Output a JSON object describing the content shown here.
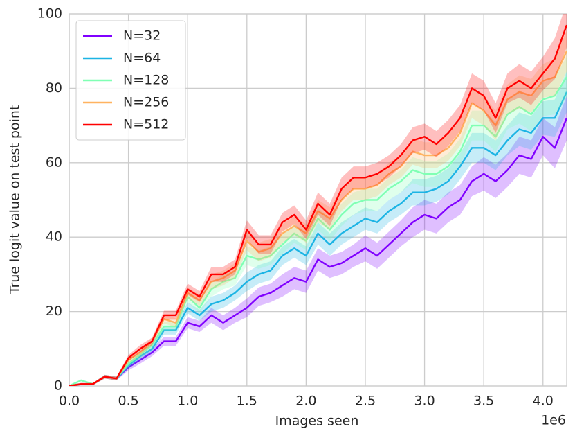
{
  "chart_data": {
    "type": "line",
    "xlabel": "Images seen",
    "ylabel": "True logit value on test point",
    "x_offset_label": "1e6",
    "x": [
      0,
      0.1,
      0.2,
      0.3,
      0.4,
      0.5,
      0.6,
      0.7,
      0.8,
      0.9,
      1.0,
      1.1,
      1.2,
      1.3,
      1.4,
      1.5,
      1.6,
      1.7,
      1.8,
      1.9,
      2.0,
      2.1,
      2.2,
      2.3,
      2.4,
      2.5,
      2.6,
      2.7,
      2.8,
      2.9,
      3.0,
      3.1,
      3.2,
      3.3,
      3.4,
      3.5,
      3.6,
      3.7,
      3.8,
      3.9,
      4.0,
      4.1,
      4.2
    ],
    "xlim": [
      0,
      4.2
    ],
    "xticks": [
      {
        "value": 0,
        "label": "0.0"
      },
      {
        "value": 0.5,
        "label": "0.5"
      },
      {
        "value": 1,
        "label": "1.0"
      },
      {
        "value": 1.5,
        "label": "1.5"
      },
      {
        "value": 2,
        "label": "2.0"
      },
      {
        "value": 2.5,
        "label": "2.5"
      },
      {
        "value": 3,
        "label": "3.0"
      },
      {
        "value": 3.5,
        "label": "3.5"
      },
      {
        "value": 4,
        "label": "4.0"
      }
    ],
    "ylim": [
      0,
      100
    ],
    "yticks": [
      0,
      20,
      40,
      60,
      80,
      100
    ],
    "grid": true,
    "legend": "upper left",
    "series": [
      {
        "name": "N=32",
        "color": "#8000ff",
        "values": [
          0,
          0.5,
          0.5,
          2.5,
          2,
          5,
          7,
          9,
          12,
          12,
          17,
          16,
          19,
          17,
          19,
          21,
          24,
          25,
          27,
          29,
          28,
          34,
          32,
          33,
          35,
          37,
          35,
          38,
          41,
          44,
          46,
          45,
          48,
          50,
          55,
          57,
          55,
          58,
          62,
          61,
          67,
          64,
          72
        ],
        "error": [
          0.3,
          0.3,
          0.3,
          0.5,
          0.5,
          0.8,
          1,
          1,
          1.2,
          1.2,
          1.5,
          1.5,
          2,
          2,
          2,
          2.5,
          2.5,
          2.5,
          3,
          3,
          3,
          3,
          3,
          3,
          3,
          3.5,
          3.5,
          3.5,
          3.5,
          4,
          4,
          4,
          4,
          4,
          4,
          4.5,
          4.5,
          4.5,
          5,
          5,
          5,
          5.5,
          6
        ]
      },
      {
        "name": "N=64",
        "color": "#1cb4e4",
        "values": [
          0,
          0.5,
          0.5,
          2.5,
          2,
          5.5,
          8,
          10,
          15,
          15,
          21,
          19,
          22,
          23,
          25,
          28,
          30,
          31,
          35,
          37,
          35,
          41,
          38,
          41,
          43,
          45,
          44,
          47,
          49,
          52,
          52,
          53,
          55,
          59,
          64,
          64,
          62,
          66,
          69,
          68,
          72,
          72,
          79
        ],
        "error": [
          0.3,
          0.3,
          0.3,
          0.5,
          0.5,
          0.8,
          1,
          1,
          1.2,
          1.2,
          1.5,
          1.5,
          2,
          2,
          2,
          2.5,
          2.5,
          2.5,
          2.5,
          2.5,
          2.5,
          3,
          3,
          3,
          3,
          3,
          3,
          3,
          3,
          3.5,
          3.5,
          3.5,
          3.5,
          3.5,
          4,
          4,
          4,
          4,
          4.5,
          4.5,
          4.5,
          5,
          5.5
        ]
      },
      {
        "name": "N=128",
        "color": "#80ffb4",
        "values": [
          0,
          1.5,
          0.5,
          2.5,
          2,
          6,
          8.5,
          11,
          16,
          16,
          24,
          21,
          26,
          28,
          29,
          35,
          34,
          35,
          38,
          41,
          39,
          45,
          42,
          46,
          49,
          50,
          50,
          53,
          55,
          58,
          57,
          57,
          59,
          63,
          70,
          70,
          67,
          73,
          75,
          73,
          77,
          78,
          83
        ],
        "error": [
          0.3,
          0.3,
          0.3,
          0.5,
          0.5,
          0.8,
          1,
          1,
          1.2,
          1.2,
          1.5,
          1.5,
          2,
          2,
          2,
          2.5,
          2.5,
          2.5,
          2.5,
          2.5,
          2.5,
          3,
          3,
          3,
          3,
          3,
          3,
          3,
          3,
          3.5,
          3.5,
          3.5,
          3.5,
          3.5,
          4,
          4,
          4,
          4,
          4.5,
          4.5,
          4.5,
          5,
          5.5
        ]
      },
      {
        "name": "N=256",
        "color": "#ffb360",
        "values": [
          0,
          0.5,
          0.5,
          2.5,
          2,
          7,
          9,
          12,
          18,
          17,
          25,
          23,
          28,
          29,
          31,
          39,
          36,
          37,
          41,
          43,
          41,
          47,
          45,
          50,
          53,
          53,
          54,
          57,
          59,
          63,
          62,
          62,
          64,
          68,
          76,
          74,
          70,
          77,
          79,
          78,
          82,
          83,
          90
        ],
        "error": [
          0.3,
          0.3,
          0.3,
          0.5,
          0.5,
          0.8,
          1,
          1,
          1.2,
          1.2,
          1.5,
          1.5,
          2,
          2,
          2,
          2.5,
          2.5,
          2.5,
          2.5,
          2.5,
          2.5,
          3,
          3,
          3,
          3,
          3,
          3,
          3,
          3,
          3.5,
          3.5,
          3.5,
          3.5,
          3.5,
          4,
          4,
          4,
          4,
          4.5,
          4.5,
          4.5,
          5,
          5.5
        ]
      },
      {
        "name": "N=512",
        "color": "#ff0000",
        "values": [
          0,
          0.5,
          0.5,
          2.5,
          2,
          7.5,
          10,
          12,
          19,
          19,
          26,
          24,
          30,
          30,
          32,
          42,
          38,
          38,
          44,
          46,
          42,
          49,
          46,
          53,
          56,
          56,
          57,
          59,
          62,
          66,
          67,
          65,
          68,
          72,
          80,
          78,
          72,
          80,
          82,
          80,
          84,
          88,
          97
        ],
        "error": [
          0.3,
          0.3,
          0.3,
          0.5,
          0.5,
          0.8,
          1,
          1,
          1.2,
          1.2,
          1.5,
          1.5,
          2,
          2,
          2,
          2.5,
          2.5,
          2.5,
          2.5,
          2.5,
          2.5,
          3,
          3,
          3,
          3,
          3,
          3,
          3,
          3,
          3.5,
          3.5,
          3.5,
          3.5,
          3.5,
          4,
          4,
          4,
          4,
          4.5,
          4.5,
          4.5,
          5.5,
          6
        ]
      }
    ]
  }
}
